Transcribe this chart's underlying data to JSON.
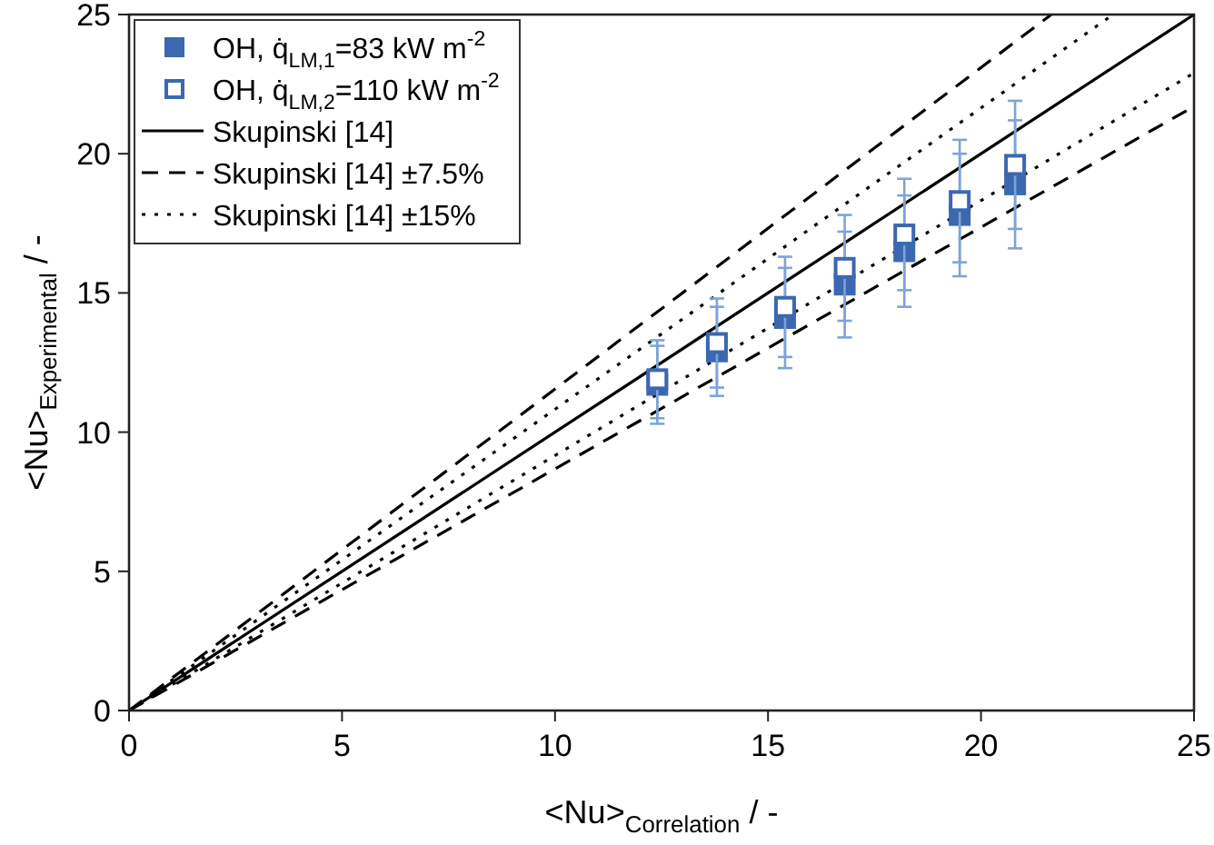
{
  "chart_data": {
    "type": "scatter",
    "xlabel": "<Nu>$_{Correlation}$ / -",
    "ylabel": "<Nu>$_{Experimental}$ / -",
    "xlim": [
      0,
      25
    ],
    "ylim": [
      0,
      25
    ],
    "xticks": [
      0,
      5,
      10,
      15,
      20,
      25
    ],
    "yticks": [
      0,
      5,
      10,
      15,
      20,
      25
    ],
    "grid": false,
    "legend": "top left",
    "series": [
      {
        "name": "OH, q̇$_{LM,1}$=83 kW m$^{-2}$",
        "marker": "square",
        "color": "#3b68b0",
        "x": [
          12.4,
          13.8,
          15.4,
          16.8,
          18.2,
          19.5,
          20.8
        ],
        "values": [
          11.7,
          12.9,
          14.1,
          15.3,
          16.5,
          17.8,
          18.9
        ],
        "errors": [
          1.4,
          1.6,
          1.8,
          1.9,
          2.0,
          2.2,
          2.3
        ]
      },
      {
        "name": "OH, q̇$_{LM,2}$=110 kW m$^{-2}$",
        "marker": "square",
        "color": "#3b68b0",
        "x": [
          12.4,
          13.8,
          15.4,
          16.8,
          18.2,
          19.5,
          20.8
        ],
        "values": [
          11.9,
          13.2,
          14.5,
          15.9,
          17.1,
          18.3,
          19.6
        ],
        "errors": [
          1.4,
          1.6,
          1.8,
          1.9,
          2.0,
          2.2,
          2.3
        ]
      },
      {
        "name": "Skupinski [14]",
        "type": "line",
        "line_style": "solid",
        "color": "#000000",
        "x": [
          0,
          25
        ],
        "values": [
          0,
          25
        ]
      },
      {
        "name": "Skupinski [14] ±7.5%",
        "type": "line",
        "line_style": "dashed",
        "color": "#000000",
        "x": [
          0,
          21.65
        ],
        "values": [
          0,
          25
        ]
      },
      {
        "type": "line",
        "line_style": "dashed",
        "color": "#000000",
        "x": [
          0,
          25
        ],
        "values": [
          0,
          21.7
        ]
      },
      {
        "name": "Skupinski [14] ±15%",
        "type": "line",
        "line_style": "dotted",
        "color": "#000000",
        "x": [
          0,
          23.1
        ],
        "values": [
          0,
          25
        ]
      },
      {
        "type": "line",
        "line_style": "dotted",
        "color": "#000000",
        "x": [
          0,
          25
        ],
        "values": [
          0,
          22.9
        ]
      }
    ]
  }
}
